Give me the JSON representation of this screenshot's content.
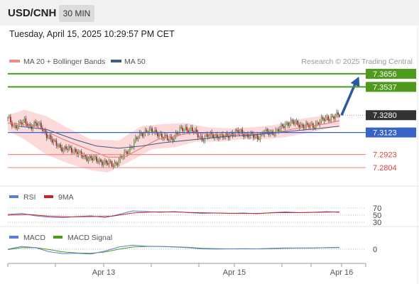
{
  "header": {
    "symbol": "USD/CNH",
    "timeframe": "30 MIN",
    "datetime": "Tuesday, April 15, 2025 10:29:57 PM CET"
  },
  "legend": {
    "ma20": "MA 20 + Bollinger Bands",
    "ma50": "MA 50",
    "credit": "Research © 2025 Trading Central"
  },
  "colors": {
    "green_level": "#4d9a1c",
    "blue_level": "#3a63c8",
    "red_level": "#f08c8c",
    "current": "#333333",
    "ma20": "#f07070",
    "ma50": "#3e5b8a",
    "band_fill": "#fbd3d3",
    "arrow": "#2c5aa0",
    "rsi": "#5b7fd8",
    "rsi_ma": "#d42020",
    "macd": "#5b7fd8",
    "macd_signal": "#4d9a1c"
  },
  "chart_data": {
    "type": "candlestick",
    "ylim": [
      7.274,
      7.372
    ],
    "levels": [
      {
        "value": 7.3656,
        "label": "7.3656",
        "kind": "resistance"
      },
      {
        "value": 7.3537,
        "label": "7.3537",
        "kind": "resistance"
      },
      {
        "value": 7.328,
        "label": "7.3280",
        "kind": "current"
      },
      {
        "value": 7.3123,
        "label": "7.3123",
        "kind": "pivot"
      },
      {
        "value": 7.2923,
        "label": "7.2923",
        "kind": "support"
      },
      {
        "value": 7.2804,
        "label": "7.2804",
        "kind": "support"
      }
    ],
    "x_ticks": [
      "Apr 13",
      "Apr 15",
      "Apr 16"
    ],
    "close_path": [
      [
        0,
        7.325
      ],
      [
        4,
        7.318
      ],
      [
        8,
        7.32
      ],
      [
        12,
        7.322
      ],
      [
        16,
        7.318
      ],
      [
        20,
        7.32
      ],
      [
        24,
        7.318
      ],
      [
        28,
        7.31
      ],
      [
        32,
        7.304
      ],
      [
        36,
        7.302
      ],
      [
        40,
        7.296
      ],
      [
        44,
        7.298
      ],
      [
        48,
        7.296
      ],
      [
        52,
        7.292
      ],
      [
        56,
        7.29
      ],
      [
        60,
        7.289
      ],
      [
        64,
        7.287
      ],
      [
        68,
        7.286
      ],
      [
        72,
        7.284
      ],
      [
        76,
        7.283
      ],
      [
        80,
        7.287
      ],
      [
        84,
        7.292
      ],
      [
        88,
        7.298
      ],
      [
        92,
        7.305
      ],
      [
        96,
        7.311
      ],
      [
        100,
        7.314
      ],
      [
        104,
        7.313
      ],
      [
        108,
        7.312
      ],
      [
        112,
        7.308
      ],
      [
        116,
        7.306
      ],
      [
        120,
        7.309
      ],
      [
        124,
        7.314
      ],
      [
        128,
        7.316
      ],
      [
        132,
        7.315
      ],
      [
        136,
        7.311
      ],
      [
        140,
        7.307
      ],
      [
        144,
        7.309
      ],
      [
        148,
        7.31
      ],
      [
        152,
        7.309
      ],
      [
        156,
        7.308
      ],
      [
        160,
        7.311
      ],
      [
        164,
        7.312
      ],
      [
        168,
        7.313
      ],
      [
        172,
        7.31
      ],
      [
        176,
        7.309
      ],
      [
        180,
        7.308
      ],
      [
        184,
        7.312
      ],
      [
        188,
        7.312
      ],
      [
        192,
        7.313
      ],
      [
        196,
        7.315
      ],
      [
        200,
        7.32
      ],
      [
        204,
        7.322
      ],
      [
        208,
        7.32
      ],
      [
        212,
        7.319
      ],
      [
        216,
        7.318
      ],
      [
        220,
        7.318
      ],
      [
        224,
        7.322
      ],
      [
        228,
        7.324
      ],
      [
        232,
        7.326
      ],
      [
        236,
        7.327
      ],
      [
        239,
        7.328
      ]
    ],
    "ma20_path": [
      [
        0,
        7.321
      ],
      [
        20,
        7.318
      ],
      [
        40,
        7.306
      ],
      [
        60,
        7.296
      ],
      [
        72,
        7.29
      ],
      [
        84,
        7.29
      ],
      [
        96,
        7.298
      ],
      [
        108,
        7.306
      ],
      [
        120,
        7.309
      ],
      [
        132,
        7.312
      ],
      [
        144,
        7.311
      ],
      [
        156,
        7.31
      ],
      [
        168,
        7.311
      ],
      [
        180,
        7.311
      ],
      [
        192,
        7.312
      ],
      [
        204,
        7.315
      ],
      [
        216,
        7.318
      ],
      [
        228,
        7.32
      ],
      [
        239,
        7.323
      ]
    ],
    "ma50_path": [
      [
        8,
        7.318
      ],
      [
        28,
        7.315
      ],
      [
        48,
        7.306
      ],
      [
        64,
        7.3
      ],
      [
        80,
        7.298
      ],
      [
        96,
        7.3
      ],
      [
        112,
        7.303
      ],
      [
        128,
        7.305
      ],
      [
        144,
        7.307
      ],
      [
        160,
        7.309
      ],
      [
        176,
        7.31
      ],
      [
        192,
        7.312
      ],
      [
        208,
        7.314
      ],
      [
        224,
        7.316
      ],
      [
        239,
        7.318
      ]
    ],
    "band_upper": [
      [
        0,
        7.328
      ],
      [
        12,
        7.333
      ],
      [
        28,
        7.327
      ],
      [
        44,
        7.316
      ],
      [
        60,
        7.306
      ],
      [
        80,
        7.305
      ],
      [
        96,
        7.318
      ],
      [
        112,
        7.32
      ],
      [
        128,
        7.321
      ],
      [
        144,
        7.317
      ],
      [
        160,
        7.316
      ],
      [
        176,
        7.317
      ],
      [
        192,
        7.319
      ],
      [
        208,
        7.324
      ],
      [
        224,
        7.327
      ],
      [
        239,
        7.33
      ]
    ],
    "band_lower": [
      [
        0,
        7.314
      ],
      [
        12,
        7.306
      ],
      [
        28,
        7.292
      ],
      [
        44,
        7.284
      ],
      [
        60,
        7.278
      ],
      [
        72,
        7.276
      ],
      [
        88,
        7.286
      ],
      [
        104,
        7.297
      ],
      [
        120,
        7.299
      ],
      [
        136,
        7.304
      ],
      [
        152,
        7.304
      ],
      [
        168,
        7.306
      ],
      [
        184,
        7.306
      ],
      [
        200,
        7.308
      ],
      [
        216,
        7.312
      ],
      [
        232,
        7.316
      ],
      [
        239,
        7.318
      ]
    ],
    "projection": {
      "from": [
        239,
        7.328
      ],
      "to": [
        252,
        7.3656
      ]
    },
    "rsi": {
      "levels": [
        70,
        50,
        30
      ],
      "series": [
        [
          0,
          52
        ],
        [
          10,
          55
        ],
        [
          20,
          48
        ],
        [
          30,
          44
        ],
        [
          40,
          43
        ],
        [
          50,
          46
        ],
        [
          60,
          48
        ],
        [
          70,
          43
        ],
        [
          80,
          52
        ],
        [
          90,
          62
        ],
        [
          100,
          60
        ],
        [
          110,
          58
        ],
        [
          120,
          60
        ],
        [
          130,
          57
        ],
        [
          140,
          55
        ],
        [
          150,
          56
        ],
        [
          160,
          55
        ],
        [
          170,
          56
        ],
        [
          180,
          54
        ],
        [
          190,
          57
        ],
        [
          200,
          59
        ],
        [
          210,
          57
        ],
        [
          220,
          58
        ],
        [
          230,
          60
        ],
        [
          239,
          58
        ]
      ],
      "ma_series": [
        [
          0,
          50
        ],
        [
          15,
          52
        ],
        [
          30,
          47
        ],
        [
          45,
          45
        ],
        [
          60,
          46
        ],
        [
          75,
          47
        ],
        [
          90,
          56
        ],
        [
          105,
          59
        ],
        [
          120,
          59
        ],
        [
          135,
          57
        ],
        [
          150,
          56
        ],
        [
          165,
          55
        ],
        [
          180,
          55
        ],
        [
          195,
          57
        ],
        [
          210,
          57
        ],
        [
          225,
          58
        ],
        [
          239,
          59
        ]
      ]
    },
    "macd": {
      "zero_label": "0",
      "series": [
        [
          0,
          0.0
        ],
        [
          10,
          0.0015
        ],
        [
          20,
          0.0008
        ],
        [
          30,
          -0.0014
        ],
        [
          40,
          -0.0024
        ],
        [
          50,
          -0.0022
        ],
        [
          60,
          -0.0026
        ],
        [
          70,
          -0.001
        ],
        [
          80,
          0.0012
        ],
        [
          90,
          0.0022
        ],
        [
          100,
          0.0016
        ],
        [
          110,
          0.0015
        ],
        [
          120,
          0.0012
        ],
        [
          130,
          0.0008
        ],
        [
          140,
          0.0002
        ],
        [
          150,
          0.0001
        ],
        [
          160,
          0.0002
        ],
        [
          170,
          0.0003
        ],
        [
          180,
          0.0002
        ],
        [
          190,
          0.0005
        ],
        [
          200,
          0.0007
        ],
        [
          210,
          0.0006
        ],
        [
          220,
          0.0007
        ],
        [
          230,
          0.0009
        ],
        [
          239,
          0.001
        ]
      ],
      "signal_series": [
        [
          0,
          -0.0002
        ],
        [
          10,
          0.0008
        ],
        [
          20,
          0.0009
        ],
        [
          30,
          -0.0002
        ],
        [
          40,
          -0.0015
        ],
        [
          50,
          -0.002
        ],
        [
          60,
          -0.0022
        ],
        [
          70,
          -0.0015
        ],
        [
          80,
          0.0
        ],
        [
          90,
          0.0012
        ],
        [
          100,
          0.0015
        ],
        [
          110,
          0.0015
        ],
        [
          120,
          0.0013
        ],
        [
          130,
          0.001
        ],
        [
          140,
          0.0005
        ],
        [
          150,
          0.0003
        ],
        [
          160,
          0.0002
        ],
        [
          170,
          0.0002
        ],
        [
          180,
          0.0002
        ],
        [
          190,
          0.0003
        ],
        [
          200,
          0.0005
        ],
        [
          210,
          0.0006
        ],
        [
          220,
          0.0006
        ],
        [
          230,
          0.0008
        ],
        [
          239,
          0.0009
        ]
      ]
    }
  },
  "rsi_panel": {
    "label": "RSI",
    "ma_label": "9MA",
    "level_labels": [
      "70",
      "50",
      "30"
    ]
  },
  "macd_panel": {
    "label": "MACD",
    "signal_label": "MACD Signal"
  }
}
